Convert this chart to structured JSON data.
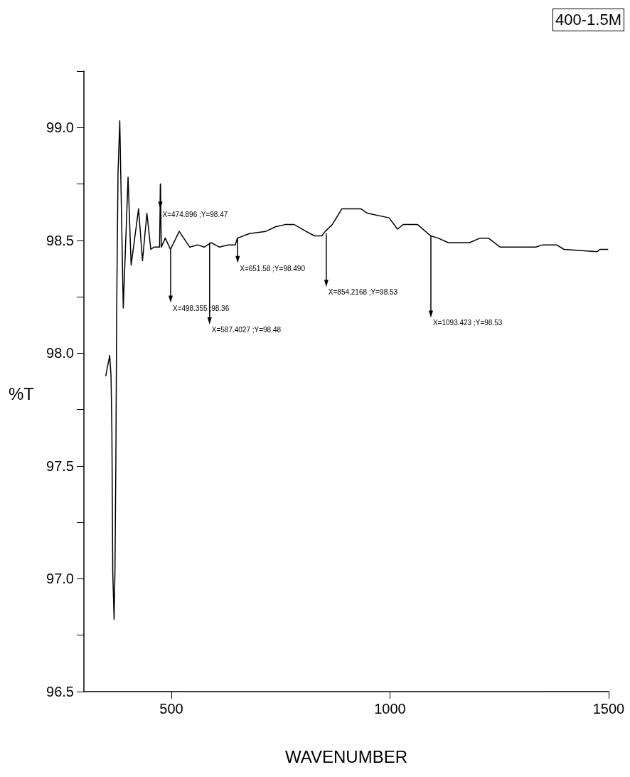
{
  "chart_data": {
    "type": "line",
    "title": "400-1.5M",
    "xlabel": "WAVENUMBER",
    "ylabel": "%T",
    "xlim": [
      300,
      1500
    ],
    "xticks": [
      500,
      1000,
      1500
    ],
    "ylim": [
      96.5,
      99.25
    ],
    "yticks": [
      96.5,
      {
        "value": 96.75,
        "label": null
      },
      {
        "value": 97,
        "label": "97.0"
      },
      {
        "value": 97.25,
        "label": null
      },
      97.5,
      {
        "value": 97.75,
        "label": null
      },
      {
        "value": 98,
        "label": "98.0"
      },
      {
        "value": 98.25,
        "label": null
      },
      98.5,
      {
        "value": 98.75,
        "label": null
      },
      {
        "value": 99,
        "label": "99.0"
      },
      {
        "value": 99.25,
        "label": null
      }
    ],
    "marker": "none",
    "line_style": "solid",
    "series": [
      {
        "color": "#000000",
        "x": [
          350,
          359,
          362,
          364,
          366,
          369,
          371,
          373,
          375,
          378,
          382,
          390,
          401,
          408,
          425,
          434,
          444,
          453,
          460,
          473,
          475,
          477,
          486,
          498,
          518,
          542,
          560,
          575,
          591,
          610,
          630,
          646,
          651,
          679,
          716,
          738,
          760,
          781,
          808,
          827,
          844,
          852,
          868,
          890,
          933,
          949,
          998,
          1017,
          1030,
          1063,
          1093,
          1110,
          1133,
          1182,
          1206,
          1225,
          1252,
          1312,
          1333,
          1349,
          1381,
          1398,
          1474,
          1480,
          1498
        ],
        "values": [
          97.9,
          97.99,
          97.9,
          97.65,
          97.03,
          96.82,
          97.03,
          97.5,
          98.2,
          98.8,
          99.03,
          98.2,
          98.78,
          98.39,
          98.64,
          98.41,
          98.62,
          98.46,
          98.47,
          98.47,
          98.75,
          98.47,
          98.51,
          98.46,
          98.54,
          98.47,
          98.48,
          98.47,
          98.49,
          98.47,
          98.48,
          98.48,
          98.51,
          98.53,
          98.54,
          98.56,
          98.57,
          98.57,
          98.54,
          98.52,
          98.52,
          98.54,
          98.57,
          98.64,
          98.64,
          98.62,
          98.6,
          98.55,
          98.57,
          98.57,
          98.52,
          98.51,
          98.49,
          98.49,
          98.51,
          98.51,
          98.47,
          98.47,
          98.47,
          98.48,
          98.48,
          98.46,
          98.45,
          98.46,
          98.46
        ]
      }
    ],
    "annotations": [
      {
        "text": "X=474.896 ;Y=98.47",
        "x": 474.896,
        "y": 98.75
      },
      {
        "text": "X=498.355 ;98.36",
        "x": 498.355,
        "y": 98.46
      },
      {
        "text": "X=587.4027 ;Y=98.48",
        "x": 587.4027,
        "y": 98.49
      },
      {
        "text": "X=651.58 ;Y=98.490",
        "x": 651.58,
        "y": 98.51
      },
      {
        "text": "X=854.2168 ;Y=98.53",
        "x": 854.2168,
        "y": 98.53
      },
      {
        "text": "X=1093.423 ;Y=98.53",
        "x": 1093.423,
        "y": 98.52
      }
    ]
  }
}
